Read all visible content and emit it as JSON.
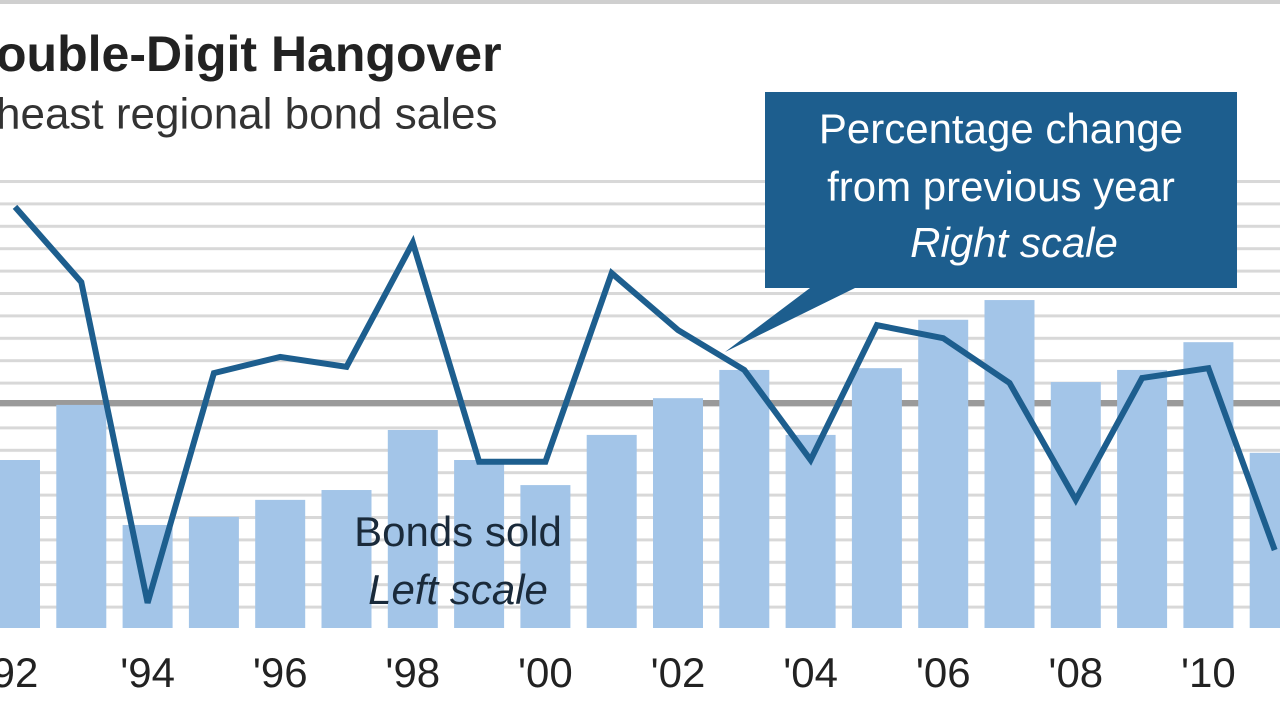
{
  "chart_data": {
    "type": "combo",
    "title": "ouble-Digit Hangover",
    "subtitle": "heast regional bond sales",
    "categories": [
      "92",
      null,
      "'94",
      null,
      "'96",
      null,
      "'98",
      null,
      "'00",
      null,
      "'02",
      null,
      "'04",
      null,
      "'06",
      null,
      "'08",
      null,
      "'10",
      null
    ],
    "series": [
      {
        "type": "bar",
        "color": "#a3c5e8",
        "values": [
          37.5,
          49.8,
          23,
          24.8,
          28.6,
          30.8,
          44.2,
          37.5,
          31.9,
          43.1,
          51.3,
          57.6,
          43.1,
          58,
          68.8,
          73.2,
          54.9,
          57.6,
          63.8,
          39.1
        ]
      },
      {
        "type": "line",
        "axis": "y2",
        "color": "#1d5e8e",
        "values": [
          94,
          77.2,
          5.6,
          56.9,
          60.5,
          58.3,
          86,
          37.1,
          37.1,
          79.2,
          66.5,
          57.6,
          37.5,
          67.6,
          64.7,
          54.7,
          28.6,
          55.8,
          58,
          17.4
        ]
      }
    ],
    "ylim": [
      0,
      100
    ],
    "y2lim": [
      0,
      100
    ],
    "annotations": {
      "line_label": [
        "Percentage change",
        "from previous year"
      ],
      "line_scale": "Right scale",
      "bar_label": "Bonds sold",
      "bar_scale": "Left scale"
    }
  }
}
